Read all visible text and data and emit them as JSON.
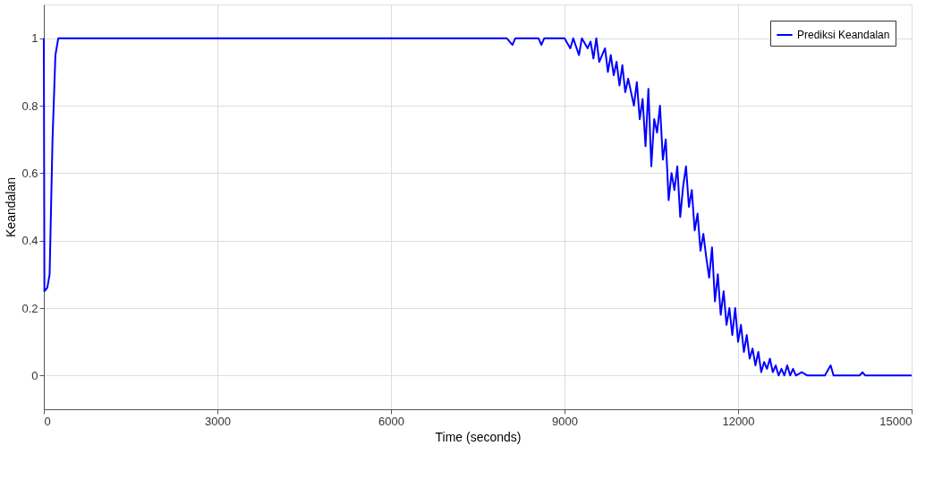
{
  "chart_data": {
    "type": "line",
    "xlabel": "Time (seconds)",
    "ylabel": "Keandalan",
    "x": [
      0,
      10,
      60,
      100,
      150,
      200,
      250,
      8000,
      8100,
      8150,
      8200,
      8550,
      8600,
      8650,
      8700,
      9000,
      9100,
      9150,
      9250,
      9300,
      9400,
      9450,
      9500,
      9550,
      9600,
      9700,
      9750,
      9800,
      9850,
      9900,
      9950,
      10000,
      10050,
      10100,
      10200,
      10250,
      10300,
      10350,
      10400,
      10450,
      10500,
      10550,
      10600,
      10650,
      10700,
      10750,
      10800,
      10850,
      10900,
      10950,
      11000,
      11050,
      11100,
      11150,
      11200,
      11250,
      11300,
      11350,
      11400,
      11450,
      11500,
      11550,
      11600,
      11650,
      11700,
      11750,
      11800,
      11850,
      11900,
      11950,
      12000,
      12050,
      12100,
      12150,
      12200,
      12250,
      12300,
      12350,
      12400,
      12450,
      12500,
      12550,
      12600,
      12650,
      12700,
      12750,
      12800,
      12850,
      12900,
      12950,
      13000,
      13100,
      13200,
      13500,
      13600,
      13650,
      14100,
      14150,
      14200,
      15000
    ],
    "xlim": [
      0,
      15000
    ],
    "xticks": [
      0,
      3000,
      6000,
      9000,
      12000,
      15000
    ],
    "ylim": [
      -0.1,
      1.1
    ],
    "yticks": [
      0,
      0.2,
      0.4,
      0.6,
      0.8,
      1
    ],
    "series": [
      {
        "name": "Prediksi Keandalan",
        "color": "#0000ff",
        "values": [
          1,
          0.25,
          0.26,
          0.3,
          0.7,
          0.95,
          1,
          1,
          0.98,
          1,
          1,
          1,
          0.98,
          1,
          1,
          1,
          0.97,
          1,
          0.95,
          1,
          0.97,
          0.99,
          0.94,
          1,
          0.93,
          0.97,
          0.9,
          0.95,
          0.89,
          0.93,
          0.86,
          0.92,
          0.84,
          0.88,
          0.8,
          0.87,
          0.76,
          0.82,
          0.68,
          0.85,
          0.62,
          0.76,
          0.72,
          0.8,
          0.64,
          0.7,
          0.52,
          0.6,
          0.55,
          0.62,
          0.47,
          0.56,
          0.62,
          0.5,
          0.55,
          0.43,
          0.48,
          0.37,
          0.42,
          0.35,
          0.29,
          0.38,
          0.22,
          0.3,
          0.18,
          0.25,
          0.15,
          0.2,
          0.12,
          0.2,
          0.1,
          0.15,
          0.07,
          0.12,
          0.05,
          0.08,
          0.03,
          0.07,
          0.01,
          0.04,
          0.02,
          0.05,
          0.01,
          0.03,
          0,
          0.02,
          0,
          0.03,
          0,
          0.02,
          0,
          0.01,
          0,
          0,
          0.03,
          0,
          0,
          0.01,
          0,
          0
        ]
      }
    ],
    "grid": true,
    "legend": "top right",
    "marker": "none",
    "line_style": "solid"
  }
}
